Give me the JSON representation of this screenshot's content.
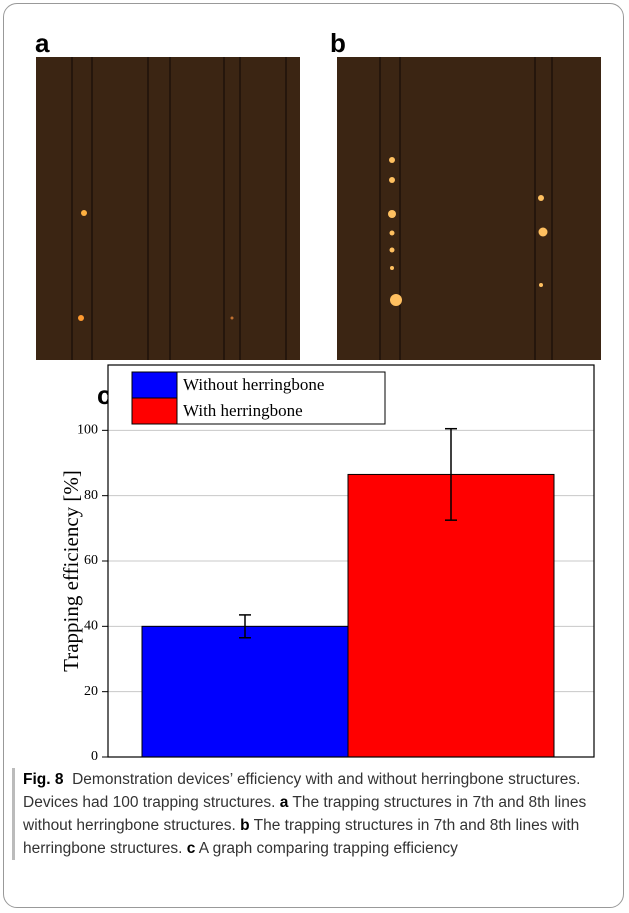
{
  "panel_labels": [
    "a",
    "b",
    "c"
  ],
  "chart_data": {
    "type": "bar",
    "ylabel": "Trapping efficiency [%]",
    "series": [
      {
        "name": "Without herringbone",
        "color": "#0000ff",
        "values": [
          40
        ],
        "errors": [
          3.5
        ]
      },
      {
        "name": "With herringbone",
        "color": "#ff0000",
        "values": [
          86.5
        ],
        "errors": [
          14
        ]
      }
    ],
    "ylim": [
      0,
      120
    ],
    "yticks": [
      0,
      20,
      40,
      60,
      80,
      100
    ],
    "grid": true,
    "legend": "upper-left"
  },
  "caption": {
    "label": "Fig. 8",
    "text": "Demonstration devices’ efficiency with and without herringbone structures. Devices had 100 trapping structures.",
    "items": [
      {
        "label": "a",
        "text": "The trapping structures in 7th and 8th lines without herringbone structures."
      },
      {
        "label": "b",
        "text": "The trapping structures in 7th and 8th lines with herringbone structures."
      },
      {
        "label": "c",
        "text": "A graph comparing trapping efficiency"
      }
    ]
  }
}
